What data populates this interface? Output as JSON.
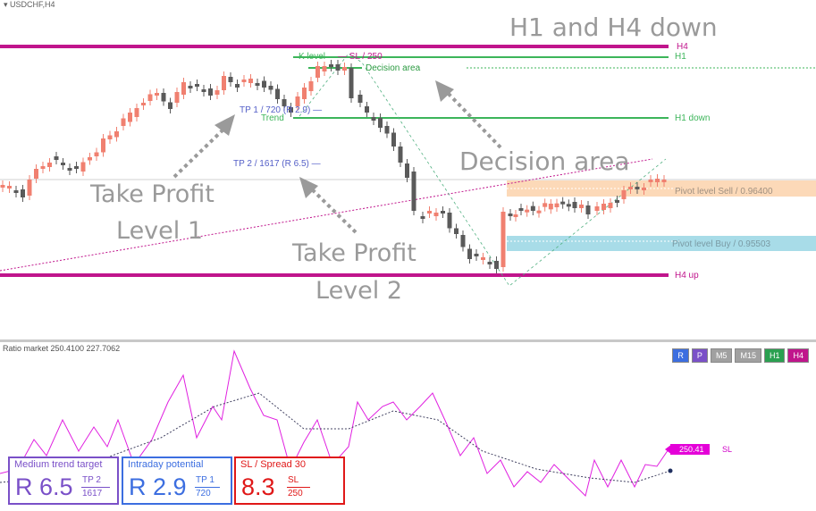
{
  "chart": {
    "symbol": "USDCHF,H4",
    "overlay_title": "H1 and H4 down",
    "overlay_decision": "Decision area",
    "overlay_tp1_a": "Take Profit",
    "overlay_tp1_b": "Level 1",
    "overlay_tp2_a": "Take Profit",
    "overlay_tp2_b": "Level 2",
    "lines": {
      "h4_top": "H4",
      "h1_top": "H1",
      "h1_down": "H1  down",
      "h4_up": "H4  up",
      "k_level": "K level",
      "sl_250": "SL / 250",
      "decision_area": "Decision area",
      "trend": "Trend",
      "tp1": "TP 1 / 720 (R 2.9)",
      "tp2": "TP 2 / 1617 (R 6.5)",
      "pivot_sell": "Pivot level Sell / 0.96400",
      "pivot_buy": "Pivot level Buy / 0.95503"
    },
    "colors": {
      "bull": "#f08070",
      "bear": "#5a5a5a",
      "h4": "#c0158c",
      "h1": "#3cb55a",
      "pivot_sell": "#fcd9b8",
      "pivot_buy": "#a8dce8",
      "tp_text": "#5560c8",
      "osc": "#e020e0"
    }
  },
  "indicator": {
    "label": "Ratio market 250.4100 227.7062",
    "value_tag": "250.41",
    "value_tag_suffix": "SL",
    "timeframes": [
      {
        "label": "R",
        "color": "#3c6ee0"
      },
      {
        "label": "P",
        "color": "#7a50c8"
      },
      {
        "label": "M5",
        "color": "#a0a0a0"
      },
      {
        "label": "M15",
        "color": "#a0a0a0"
      },
      {
        "label": "H1",
        "color": "#2aa050"
      },
      {
        "label": "H4",
        "color": "#c0158c"
      }
    ]
  },
  "boxes": {
    "medium": {
      "title": "Medium trend target",
      "big": "R 6.5",
      "tp": "TP 2",
      "num": "1617",
      "color": "#7a50c8"
    },
    "intraday": {
      "title": "Intraday potential",
      "big": "R 2.9",
      "tp": "TP 1",
      "num": "720",
      "color": "#3c6ee0"
    },
    "sl": {
      "title": "SL / Spread  30",
      "big": "8.3",
      "tp": "SL",
      "num": "250",
      "color": "#e01818"
    }
  }
}
